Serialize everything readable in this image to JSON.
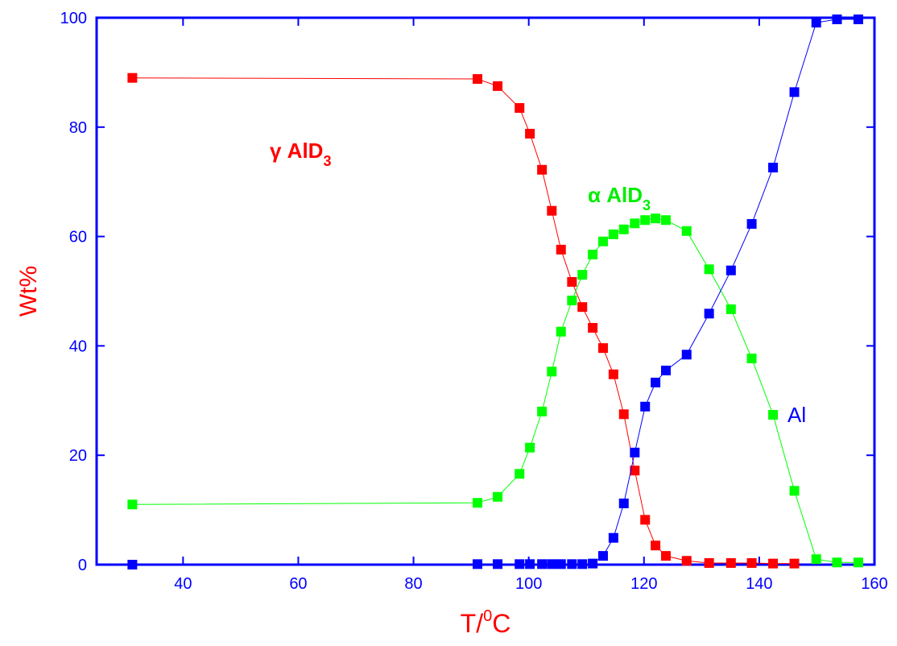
{
  "chart_data": {
    "type": "line",
    "xlabel": {
      "pre": "T/",
      "sup": "0",
      "post": "C"
    },
    "ylabel": "Wt%",
    "axis_color": "#0000ff",
    "ylabel_color": "#ff0000",
    "xlabel_color": "#ff0000",
    "xlim": [
      25,
      160
    ],
    "xticks": [
      40,
      60,
      80,
      100,
      120,
      140,
      160
    ],
    "ylim": [
      0,
      100
    ],
    "yticks": [
      0,
      20,
      40,
      60,
      80,
      100
    ],
    "annotations": [
      {
        "text": "γ AlD",
        "sub": "3",
        "color": "#ff0000"
      },
      {
        "text": "α AlD",
        "sub": "3",
        "color": "#00ee00"
      },
      {
        "text": "Al",
        "sub": null,
        "color": "#0000ff"
      }
    ],
    "series": [
      {
        "color": "#ff0000",
        "x": [
          31.2,
          91.1,
          94.6,
          98.4,
          100.2,
          102.3,
          104.0,
          105.6,
          107.5,
          109.3,
          111.1,
          112.9,
          114.7,
          116.5,
          118.4,
          120.2,
          122.0,
          123.8,
          127.4,
          131.3,
          135.1,
          138.7,
          142.4,
          146.1
        ],
        "values": [
          89.0,
          88.8,
          87.5,
          83.5,
          78.8,
          72.2,
          64.7,
          57.6,
          51.7,
          47.1,
          43.3,
          39.6,
          34.8,
          27.5,
          17.2,
          8.2,
          3.5,
          1.6,
          0.7,
          0.3,
          0.3,
          0.3,
          0.2,
          0.2
        ]
      },
      {
        "color": "#00ff00",
        "x": [
          31.2,
          91.1,
          94.6,
          98.4,
          100.2,
          102.3,
          104.0,
          105.6,
          107.5,
          109.3,
          111.1,
          112.9,
          114.7,
          116.5,
          118.4,
          120.2,
          122.0,
          123.8,
          127.4,
          131.3,
          135.1,
          138.7,
          142.4,
          146.1,
          149.9,
          153.5,
          157.2
        ],
        "values": [
          11.0,
          11.3,
          12.4,
          16.6,
          21.4,
          28.0,
          35.3,
          42.6,
          48.3,
          53.0,
          56.7,
          59.1,
          60.4,
          61.3,
          62.4,
          63.0,
          63.3,
          63.0,
          61.0,
          54.0,
          46.7,
          37.7,
          27.4,
          13.5,
          1.0,
          0.4,
          0.4
        ]
      },
      {
        "color": "#0000ff",
        "x": [
          31.2,
          91.1,
          94.6,
          98.4,
          100.2,
          102.3,
          104.0,
          105.6,
          107.5,
          109.3,
          111.1,
          112.9,
          114.7,
          116.5,
          118.4,
          120.2,
          122.0,
          123.8,
          127.4,
          131.3,
          135.1,
          138.7,
          142.4,
          146.1,
          149.9,
          153.5,
          157.2
        ],
        "values": [
          0,
          0.1,
          0.1,
          0.1,
          0.1,
          0.1,
          0.1,
          0.1,
          0.1,
          0.1,
          0.2,
          1.6,
          4.9,
          11.2,
          20.5,
          28.9,
          33.3,
          35.5,
          38.4,
          45.9,
          53.8,
          62.3,
          72.6,
          86.4,
          99.1,
          99.7,
          99.7
        ]
      }
    ]
  }
}
